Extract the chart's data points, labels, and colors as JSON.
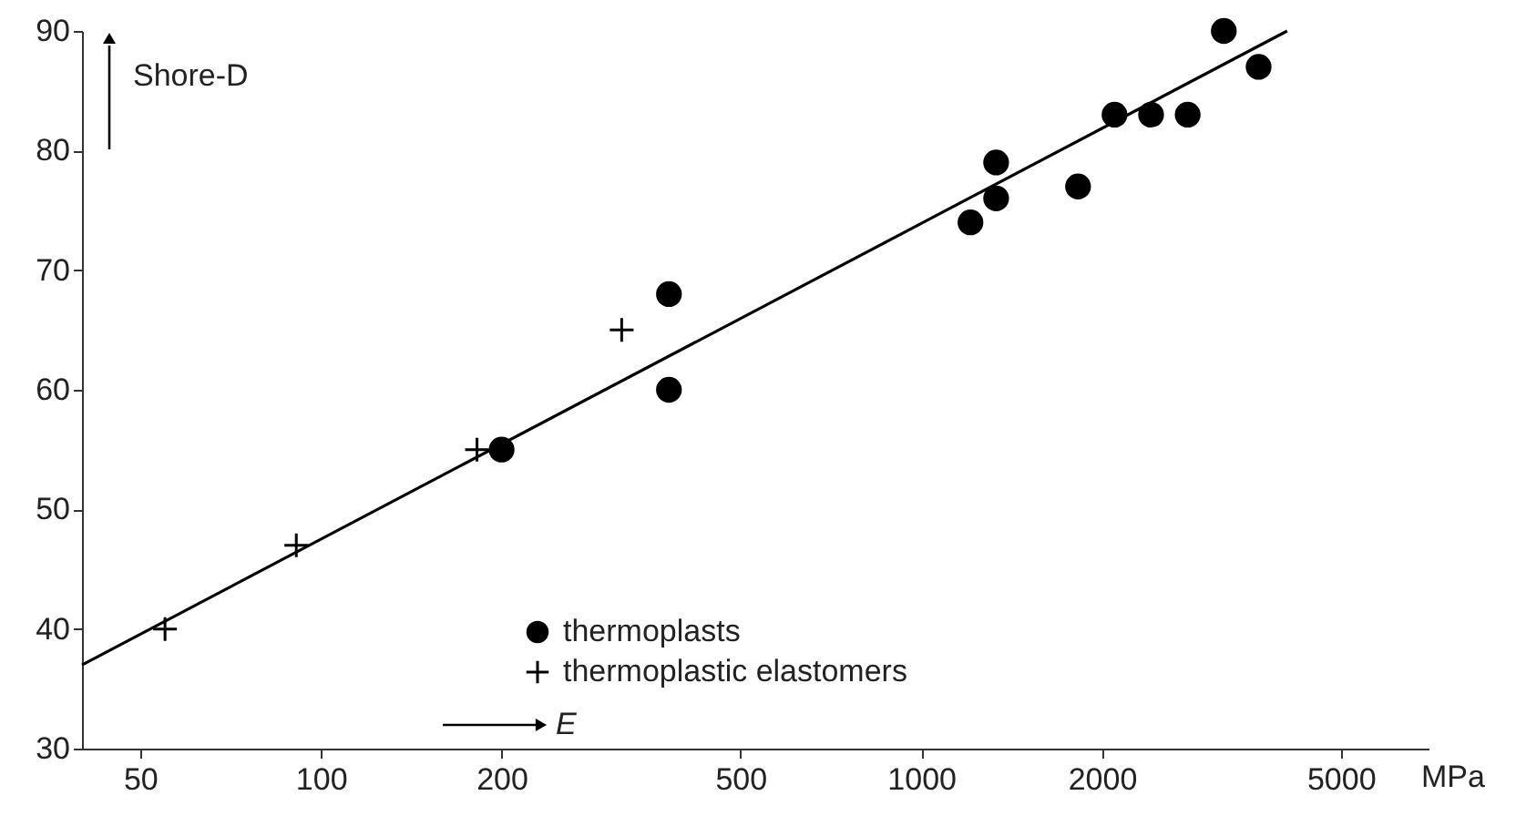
{
  "chart_data": {
    "type": "scatter",
    "xlabel": "E",
    "ylabel": "Shore-D",
    "log": "x",
    "grid": false,
    "legend": "bottom",
    "xlim": [
      40,
      7000
    ],
    "xticks": [
      50,
      100,
      200,
      500,
      1000,
      2000,
      5000
    ],
    "ylim": [
      30,
      90
    ],
    "yticks": [
      30,
      40,
      50,
      60,
      70,
      80,
      90
    ],
    "annotations": [
      "MPa"
    ],
    "series": [
      {
        "name": "thermoplasts",
        "color": "#000000",
        "marker": "circle",
        "x": [
          200,
          380,
          380,
          1208,
          1333,
          1333,
          1825,
          2099,
          2415,
          2779,
          3192,
          3648
        ],
        "values": [
          55,
          68,
          60,
          74,
          79,
          76,
          77,
          83,
          83,
          83,
          90,
          87
        ]
      },
      {
        "name": "thermoplastic elastomers",
        "color": "#000000",
        "marker": "cross",
        "x": [
          55,
          91,
          182,
          317
        ],
        "values": [
          40,
          47,
          55,
          65
        ]
      },
      {
        "type": "line",
        "color": "#000000",
        "marker": "none",
        "line_style": "solid",
        "x": [
          40,
          4070
        ],
        "values": [
          37,
          90
        ]
      }
    ]
  }
}
